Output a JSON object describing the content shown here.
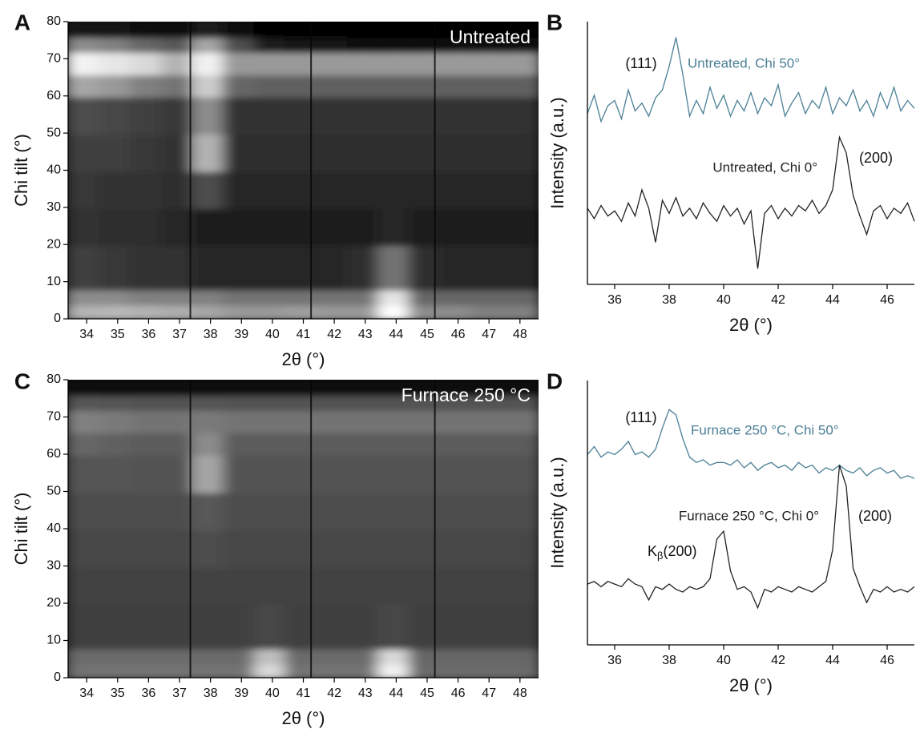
{
  "chart_data": [
    {
      "type": "heatmap",
      "panel_label": "A",
      "title": "Untreated",
      "xlabel": "2θ (°)",
      "ylabel": "Chi tilt (°)",
      "xlim": [
        33.4,
        48.6
      ],
      "xticks": [
        34,
        35,
        36,
        37,
        38,
        39,
        40,
        41,
        42,
        43,
        44,
        45,
        46,
        47,
        48
      ],
      "ylim": [
        0,
        80
      ],
      "yticks": [
        0,
        10,
        20,
        30,
        40,
        50,
        60,
        70,
        80
      ],
      "colormap": "gray",
      "x_edges": [
        33.4,
        34.5,
        35.5,
        36.5,
        37.5,
        38.5,
        39.5,
        40.5,
        41.5,
        42.5,
        43.5,
        44.5,
        45.5,
        46.5,
        47.5,
        48.6
      ],
      "y_edges": [
        0,
        4,
        8,
        20,
        30,
        40,
        50,
        60,
        66,
        72,
        76,
        80
      ],
      "detector_gaps": [
        37.35,
        41.25,
        45.25
      ],
      "z": [
        [
          0.7,
          0.72,
          0.7,
          0.68,
          0.65,
          0.6,
          0.6,
          0.62,
          0.6,
          0.6,
          1.0,
          0.55,
          0.55,
          0.5,
          0.5
        ],
        [
          0.55,
          0.55,
          0.5,
          0.5,
          0.5,
          0.45,
          0.45,
          0.45,
          0.45,
          0.45,
          0.9,
          0.4,
          0.4,
          0.4,
          0.4
        ],
        [
          0.25,
          0.22,
          0.2,
          0.2,
          0.15,
          0.15,
          0.15,
          0.15,
          0.15,
          0.18,
          0.45,
          0.18,
          0.15,
          0.15,
          0.15
        ],
        [
          0.2,
          0.18,
          0.18,
          0.15,
          0.12,
          0.12,
          0.12,
          0.12,
          0.12,
          0.12,
          0.15,
          0.12,
          0.12,
          0.12,
          0.12
        ],
        [
          0.22,
          0.2,
          0.2,
          0.18,
          0.3,
          0.15,
          0.15,
          0.15,
          0.15,
          0.15,
          0.15,
          0.15,
          0.15,
          0.15,
          0.15
        ],
        [
          0.25,
          0.25,
          0.22,
          0.2,
          0.7,
          0.18,
          0.18,
          0.18,
          0.18,
          0.18,
          0.18,
          0.18,
          0.18,
          0.18,
          0.18
        ],
        [
          0.3,
          0.28,
          0.25,
          0.22,
          0.55,
          0.2,
          0.2,
          0.2,
          0.2,
          0.2,
          0.2,
          0.2,
          0.2,
          0.2,
          0.2
        ],
        [
          0.65,
          0.6,
          0.5,
          0.45,
          0.8,
          0.4,
          0.38,
          0.38,
          0.38,
          0.38,
          0.38,
          0.38,
          0.38,
          0.38,
          0.38
        ],
        [
          0.95,
          0.9,
          0.85,
          0.7,
          0.95,
          0.6,
          0.6,
          0.6,
          0.6,
          0.6,
          0.6,
          0.6,
          0.6,
          0.6,
          0.6
        ],
        [
          0.55,
          0.5,
          0.4,
          0.35,
          0.65,
          0.3,
          0.1,
          0.08,
          0.08,
          0.06,
          0.06,
          0.06,
          0.06,
          0.06,
          0.06
        ],
        [
          0.08,
          0.08,
          0.05,
          0.05,
          0.1,
          0.03,
          0,
          0,
          0,
          0,
          0,
          0,
          0,
          0,
          0
        ]
      ]
    },
    {
      "type": "line",
      "panel_label": "B",
      "xlabel": "2θ (°)",
      "ylabel": "Intensity (a.u.)",
      "xlim": [
        35,
        47
      ],
      "xticks": [
        36,
        38,
        40,
        42,
        44,
        46
      ],
      "ylim": [
        0,
        10
      ],
      "annotations": [
        "(111)",
        "(200)"
      ],
      "x": [
        35,
        35.25,
        35.5,
        35.75,
        36,
        36.25,
        36.5,
        36.75,
        37,
        37.25,
        37.5,
        37.75,
        38,
        38.25,
        38.5,
        38.75,
        39,
        39.25,
        39.5,
        39.75,
        40,
        40.25,
        40.5,
        40.75,
        41,
        41.25,
        41.5,
        41.75,
        42,
        42.25,
        42.5,
        42.75,
        43,
        43.25,
        43.5,
        43.75,
        44,
        44.25,
        44.5,
        44.75,
        45,
        45.25,
        45.5,
        45.75,
        46,
        46.25,
        46.5,
        46.75,
        47
      ],
      "series": [
        {
          "name": "Untreated, Chi 50°",
          "color": "#4b7f95",
          "values": [
            6.5,
            7.2,
            6.2,
            6.8,
            7.0,
            6.3,
            7.4,
            6.6,
            6.9,
            6.4,
            7.1,
            7.4,
            8.3,
            9.4,
            8.0,
            6.4,
            7.0,
            6.5,
            7.5,
            6.7,
            7.2,
            6.4,
            7.0,
            6.6,
            7.3,
            6.5,
            7.1,
            6.8,
            7.6,
            6.4,
            6.9,
            7.3,
            6.5,
            7.0,
            6.7,
            7.5,
            6.5,
            7.1,
            6.8,
            7.4,
            6.6,
            7.0,
            6.4,
            7.3,
            6.7,
            7.5,
            6.6,
            7.0,
            6.7
          ]
        },
        {
          "name": "Untreated, Chi 0°",
          "color": "#222222",
          "values": [
            2.9,
            2.5,
            3.0,
            2.6,
            2.8,
            2.4,
            3.1,
            2.6,
            3.6,
            2.9,
            1.6,
            3.2,
            2.7,
            3.3,
            2.6,
            2.9,
            2.5,
            3.1,
            2.7,
            2.4,
            3.0,
            2.6,
            2.9,
            2.3,
            2.8,
            0.6,
            2.7,
            3.0,
            2.5,
            2.9,
            2.6,
            3.0,
            2.8,
            3.2,
            2.7,
            3.0,
            3.6,
            5.6,
            5.0,
            3.4,
            2.6,
            1.9,
            2.8,
            3.0,
            2.5,
            2.9,
            2.7,
            3.1,
            2.4
          ]
        }
      ]
    },
    {
      "type": "heatmap",
      "panel_label": "C",
      "title": "Furnace 250 °C",
      "xlabel": "2θ (°)",
      "ylabel": "Chi tilt (°)",
      "xlim": [
        33.4,
        48.6
      ],
      "xticks": [
        34,
        35,
        36,
        37,
        38,
        39,
        40,
        41,
        42,
        43,
        44,
        45,
        46,
        47,
        48
      ],
      "ylim": [
        0,
        80
      ],
      "yticks": [
        0,
        10,
        20,
        30,
        40,
        50,
        60,
        70,
        80
      ],
      "colormap": "gray",
      "x_edges": [
        33.4,
        34.5,
        35.5,
        36.5,
        37.5,
        38.5,
        39.5,
        40.5,
        41.5,
        42.5,
        43.5,
        44.5,
        45.5,
        46.5,
        47.5,
        48.6
      ],
      "y_edges": [
        0,
        4,
        8,
        20,
        30,
        40,
        50,
        60,
        66,
        72,
        76,
        80
      ],
      "detector_gaps": [
        37.35,
        41.25,
        45.25
      ],
      "z": [
        [
          0.45,
          0.45,
          0.45,
          0.45,
          0.45,
          0.45,
          0.85,
          0.45,
          0.45,
          0.45,
          0.95,
          0.42,
          0.42,
          0.42,
          0.42
        ],
        [
          0.42,
          0.42,
          0.42,
          0.42,
          0.42,
          0.42,
          0.75,
          0.42,
          0.42,
          0.42,
          0.85,
          0.4,
          0.4,
          0.4,
          0.4
        ],
        [
          0.25,
          0.25,
          0.25,
          0.25,
          0.25,
          0.25,
          0.28,
          0.25,
          0.25,
          0.25,
          0.28,
          0.25,
          0.25,
          0.25,
          0.25
        ],
        [
          0.26,
          0.26,
          0.26,
          0.26,
          0.26,
          0.26,
          0.26,
          0.26,
          0.26,
          0.26,
          0.26,
          0.26,
          0.26,
          0.26,
          0.26
        ],
        [
          0.28,
          0.28,
          0.28,
          0.28,
          0.3,
          0.28,
          0.28,
          0.28,
          0.28,
          0.28,
          0.28,
          0.28,
          0.28,
          0.28,
          0.28
        ],
        [
          0.3,
          0.3,
          0.3,
          0.3,
          0.35,
          0.3,
          0.3,
          0.3,
          0.3,
          0.3,
          0.3,
          0.3,
          0.3,
          0.3,
          0.3
        ],
        [
          0.33,
          0.33,
          0.32,
          0.32,
          0.65,
          0.32,
          0.32,
          0.32,
          0.32,
          0.32,
          0.32,
          0.32,
          0.32,
          0.32,
          0.32
        ],
        [
          0.4,
          0.38,
          0.36,
          0.36,
          0.55,
          0.36,
          0.36,
          0.36,
          0.36,
          0.36,
          0.36,
          0.36,
          0.36,
          0.36,
          0.36
        ],
        [
          0.5,
          0.48,
          0.45,
          0.45,
          0.48,
          0.45,
          0.45,
          0.45,
          0.45,
          0.45,
          0.45,
          0.45,
          0.45,
          0.45,
          0.45
        ],
        [
          0.34,
          0.33,
          0.32,
          0.32,
          0.33,
          0.32,
          0.32,
          0.32,
          0.32,
          0.32,
          0.32,
          0.32,
          0.32,
          0.32,
          0.32
        ],
        [
          0.03,
          0.03,
          0.03,
          0.03,
          0.03,
          0.03,
          0.03,
          0.03,
          0.03,
          0.03,
          0.03,
          0.03,
          0.03,
          0.03,
          0.03
        ]
      ]
    },
    {
      "type": "line",
      "panel_label": "D",
      "xlabel": "2θ (°)",
      "ylabel": "Intensity (a.u.)",
      "xlim": [
        35,
        47
      ],
      "xticks": [
        36,
        38,
        40,
        42,
        44,
        46
      ],
      "ylim": [
        0,
        10
      ],
      "annotations": [
        "(111)",
        "(200)"
      ],
      "kbeta_label": [
        "K",
        "β",
        "(200)"
      ],
      "x": [
        35,
        35.25,
        35.5,
        35.75,
        36,
        36.25,
        36.5,
        36.75,
        37,
        37.25,
        37.5,
        37.75,
        38,
        38.25,
        38.5,
        38.75,
        39,
        39.25,
        39.5,
        39.75,
        40,
        40.25,
        40.5,
        40.75,
        41,
        41.25,
        41.5,
        41.75,
        42,
        42.25,
        42.5,
        42.75,
        43,
        43.25,
        43.5,
        43.75,
        44,
        44.25,
        44.5,
        44.75,
        45,
        45.25,
        45.5,
        45.75,
        46,
        46.25,
        46.5,
        46.75,
        47
      ],
      "series": [
        {
          "name": "Furnace 250 °C, Chi 50°",
          "color": "#4b7f95",
          "values": [
            7.2,
            7.5,
            7.1,
            7.3,
            7.2,
            7.4,
            7.7,
            7.2,
            7.3,
            7.1,
            7.4,
            8.2,
            8.9,
            8.7,
            7.8,
            7.1,
            6.9,
            7.0,
            6.8,
            6.9,
            6.9,
            6.8,
            7.0,
            6.7,
            6.9,
            6.6,
            6.8,
            6.9,
            6.7,
            6.8,
            6.6,
            6.9,
            6.7,
            6.8,
            6.5,
            6.7,
            6.6,
            6.8,
            6.6,
            6.5,
            6.7,
            6.4,
            6.6,
            6.7,
            6.5,
            6.6,
            6.3,
            6.4,
            6.3
          ]
        },
        {
          "name": "Furnace 250 °C, Chi 0°",
          "color": "#222222",
          "values": [
            2.3,
            2.4,
            2.2,
            2.4,
            2.3,
            2.2,
            2.5,
            2.3,
            2.2,
            1.7,
            2.2,
            2.1,
            2.3,
            2.1,
            2.0,
            2.2,
            2.1,
            2.2,
            2.5,
            4.0,
            4.3,
            2.8,
            2.1,
            2.2,
            2.0,
            1.4,
            2.1,
            2.0,
            2.2,
            2.1,
            2.0,
            2.2,
            2.1,
            2.0,
            2.2,
            2.4,
            3.6,
            6.8,
            6.0,
            2.9,
            2.2,
            1.6,
            2.1,
            2.0,
            2.2,
            2.0,
            2.1,
            2.0,
            2.2
          ]
        }
      ]
    }
  ]
}
